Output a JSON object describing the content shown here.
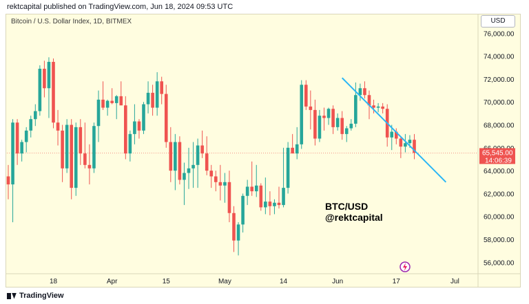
{
  "header": {
    "publisher": "rektcapital published on TradingView.com, Jun 18, 2024 09:53 UTC"
  },
  "chart_header": {
    "symbol": "Bitcoin / U.S. Dollar Index, 1D, BITMEX"
  },
  "toolbar": {
    "currency": "USD"
  },
  "overlay": {
    "title_line1": "BTC/USD",
    "title_line2": "@rektcapital"
  },
  "price_tag": {
    "price": "65,545.00",
    "countdown": "14:06:39"
  },
  "footer": {
    "brand": "TradingView"
  },
  "colors": {
    "up": "#26a69a",
    "down": "#ef5350",
    "trendline": "#29b6f6",
    "background": "#fffde0"
  },
  "chart_data": {
    "type": "candlestick",
    "ylim": [
      55000,
      76500
    ],
    "y_ticks": [
      "56,000.00",
      "58,000.00",
      "60,000.00",
      "62,000.00",
      "64,000.00",
      "66,000.00",
      "68,000.00",
      "70,000.00",
      "72,000.00",
      "74,000.00",
      "76,000.00"
    ],
    "y_tick_values": [
      56000,
      58000,
      60000,
      62000,
      64000,
      66000,
      68000,
      70000,
      72000,
      74000,
      76000
    ],
    "x_ticks": [
      "18",
      "Apr",
      "15",
      "May",
      "14",
      "Jun",
      "17",
      "Jul"
    ],
    "x_tick_index": [
      10,
      23,
      35,
      48,
      61,
      73,
      86,
      99
    ],
    "last_price": 65545,
    "candles": [
      [
        63500,
        64500,
        61500,
        62800
      ],
      [
        62800,
        68500,
        59500,
        68200
      ],
      [
        68200,
        68500,
        64500,
        65500
      ],
      [
        65500,
        66700,
        64800,
        66500
      ],
      [
        66500,
        67800,
        65600,
        67500
      ],
      [
        67500,
        68800,
        66900,
        68500
      ],
      [
        68500,
        69800,
        67900,
        69200
      ],
      [
        69200,
        73200,
        68800,
        72900
      ],
      [
        72900,
        73600,
        70400,
        71200
      ],
      [
        71200,
        73900,
        68600,
        73500
      ],
      [
        73500,
        73800,
        67700,
        68200
      ],
      [
        68200,
        69300,
        66200,
        67500
      ],
      [
        67500,
        68000,
        63000,
        64200
      ],
      [
        64200,
        68500,
        63800,
        68000
      ],
      [
        68000,
        68500,
        61500,
        62500
      ],
      [
        62500,
        68200,
        61800,
        67800
      ],
      [
        67800,
        68500,
        64500,
        65500
      ],
      [
        65500,
        68200,
        64200,
        64500
      ],
      [
        64500,
        66300,
        62800,
        64200
      ],
      [
        64200,
        68200,
        63800,
        67900
      ],
      [
        67900,
        71000,
        66500,
        70200
      ],
      [
        70200,
        71800,
        69300,
        69500
      ],
      [
        69500,
        70200,
        68800,
        70100
      ],
      [
        70100,
        71200,
        69800,
        69900
      ],
      [
        69900,
        70600,
        68500,
        70500
      ],
      [
        70500,
        71800,
        69800,
        69700
      ],
      [
        69700,
        70500,
        65000,
        65500
      ],
      [
        65500,
        67500,
        64800,
        67200
      ],
      [
        67200,
        69800,
        66300,
        68300
      ],
      [
        68300,
        68500,
        66800,
        67500
      ],
      [
        67500,
        70000,
        67200,
        69800
      ],
      [
        69800,
        71800,
        69000,
        70800
      ],
      [
        70800,
        71500,
        68800,
        69500
      ],
      [
        69500,
        72600,
        68800,
        71800
      ],
      [
        71800,
        72200,
        69800,
        70700
      ],
      [
        70700,
        71500,
        66000,
        66500
      ],
      [
        66500,
        67800,
        63000,
        64000
      ],
      [
        64000,
        67200,
        62300,
        66500
      ],
      [
        66500,
        67000,
        62800,
        63200
      ],
      [
        63200,
        64700,
        61000,
        63800
      ],
      [
        63800,
        66000,
        62400,
        64200
      ],
      [
        64200,
        66500,
        62500,
        64500
      ],
      [
        64500,
        66800,
        62500,
        66200
      ],
      [
        66200,
        67500,
        65100,
        65500
      ],
      [
        65500,
        67000,
        63600,
        64000
      ],
      [
        64000,
        64500,
        62500,
        63500
      ],
      [
        63500,
        64000,
        62200,
        63000
      ],
      [
        63000,
        64500,
        61400,
        62700
      ],
      [
        62700,
        63800,
        61200,
        63000
      ],
      [
        63000,
        64000,
        59500,
        60300
      ],
      [
        60300,
        60900,
        56900,
        57900
      ],
      [
        57900,
        59500,
        56600,
        59300
      ],
      [
        59300,
        62000,
        58600,
        61800
      ],
      [
        61800,
        63200,
        61000,
        62600
      ],
      [
        62600,
        64800,
        61800,
        62200
      ],
      [
        62200,
        64500,
        61700,
        62700
      ],
      [
        62700,
        62900,
        60500,
        60800
      ],
      [
        60800,
        63400,
        60200,
        61300
      ],
      [
        61300,
        62200,
        60100,
        60900
      ],
      [
        60900,
        61500,
        60200,
        61200
      ],
      [
        61200,
        62600,
        60700,
        61000
      ],
      [
        61000,
        66000,
        60800,
        62500
      ],
      [
        62500,
        66500,
        62000,
        66000
      ],
      [
        66000,
        67200,
        65600,
        65500
      ],
      [
        65500,
        67800,
        65000,
        66300
      ],
      [
        66300,
        71900,
        65900,
        71500
      ],
      [
        71500,
        71900,
        69300,
        69600
      ],
      [
        69600,
        71000,
        67600,
        69300
      ],
      [
        69300,
        70200,
        66200,
        66800
      ],
      [
        66800,
        69300,
        66500,
        68800
      ],
      [
        68800,
        69500,
        67500,
        68600
      ],
      [
        68600,
        69500,
        68000,
        69400
      ],
      [
        69400,
        69700,
        67200,
        67800
      ],
      [
        67800,
        69000,
        67500,
        68600
      ],
      [
        68600,
        69200,
        66700,
        67200
      ],
      [
        67200,
        67900,
        66500,
        67700
      ],
      [
        67700,
        68500,
        67500,
        68100
      ],
      [
        68100,
        71700,
        67800,
        70600
      ],
      [
        70600,
        71600,
        70100,
        71200
      ],
      [
        71200,
        71800,
        70300,
        70600
      ],
      [
        70600,
        71000,
        68500,
        69700
      ],
      [
        69700,
        70200,
        69000,
        69500
      ],
      [
        69500,
        69900,
        69100,
        69600
      ],
      [
        69600,
        69900,
        69000,
        69400
      ],
      [
        69400,
        69800,
        66100,
        66900
      ],
      [
        66900,
        68000,
        65800,
        67400
      ],
      [
        67400,
        67700,
        66300,
        66800
      ],
      [
        66800,
        67000,
        65100,
        66100
      ],
      [
        66100,
        67200,
        65600,
        66400
      ],
      [
        66400,
        67100,
        66000,
        66700
      ],
      [
        66700,
        67200,
        65000,
        65545
      ]
    ],
    "trendline": {
      "start": {
        "index": 74,
        "price": 72100
      },
      "end": {
        "index": 97,
        "price": 63000
      }
    },
    "annotations": [
      "BTC/USD",
      "@rektcapital"
    ]
  }
}
